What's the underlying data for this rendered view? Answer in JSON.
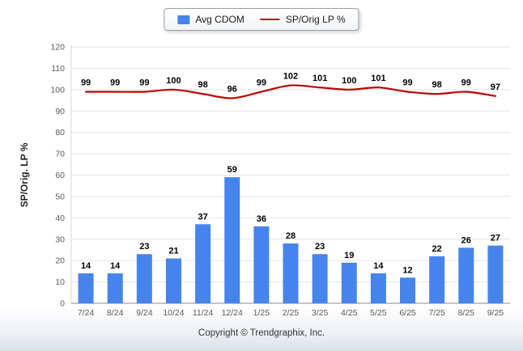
{
  "legend": {
    "series1_label": "Avg CDOM",
    "series2_label": "SP/Orig LP %"
  },
  "footer": "Copyright © Trendgraphix, Inc.",
  "colors": {
    "bar": "#4584ec",
    "line": "#c00000",
    "grid": "#e4e4e4",
    "axis": "#8a8a8a",
    "tick_text": "#5a5a5a",
    "label_text": "#000000"
  },
  "chart_data": {
    "type": "bar+line",
    "title": "",
    "xlabel": "",
    "ylabel": "SP/Orig. LP %",
    "ylim": [
      0,
      120
    ],
    "ytick_step": 10,
    "grid": true,
    "legend_position": "top-center",
    "categories": [
      "7/24",
      "8/24",
      "9/24",
      "10/24",
      "11/24",
      "12/24",
      "1/25",
      "2/25",
      "3/25",
      "4/25",
      "5/25",
      "6/25",
      "7/25",
      "8/25",
      "9/25"
    ],
    "series": [
      {
        "name": "Avg CDOM",
        "type": "bar",
        "values": [
          14,
          14,
          23,
          21,
          37,
          59,
          36,
          28,
          23,
          19,
          14,
          12,
          22,
          26,
          27
        ]
      },
      {
        "name": "SP/Orig LP %",
        "type": "line",
        "values": [
          99,
          99,
          99,
          100,
          98,
          96,
          99,
          102,
          101,
          100,
          101,
          99,
          98,
          99,
          97
        ]
      }
    ]
  }
}
